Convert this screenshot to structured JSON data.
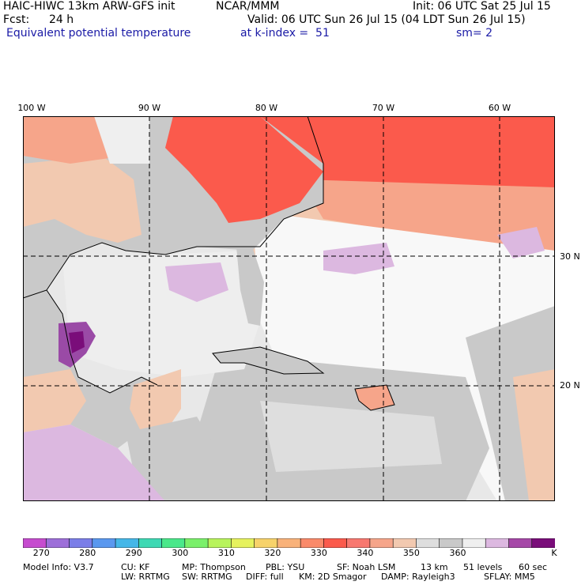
{
  "header": {
    "model_title": "HAIC-HIWC 13km ARW-GFS init",
    "org": "NCAR/MMM",
    "init_time": "Init: 06 UTC Sat 25 Jul 15",
    "forecast_label": "Fcst:",
    "forecast_hours": "24 h",
    "valid_time": "Valid: 06 UTC Sun 26 Jul 15 (04 LDT Sun 26 Jul 15)",
    "field_name": "Equivalent potential temperature",
    "level": "at k-index =  51",
    "smoothing": "sm= 2"
  },
  "map": {
    "longitude_labels": [
      "100 W",
      "90 W",
      "80 W",
      "70 W",
      "60 W"
    ],
    "latitude_labels": [
      "30 N",
      "20 N"
    ],
    "colors": {
      "ocean_light": "#e8e8e8",
      "gray_mid": "#c9c9c9",
      "tan": "#f2c9b0",
      "salmon": "#f6a58a",
      "red": "#fb5a4c",
      "lavender": "#dcb8e0",
      "purple": "#9a4aa6",
      "dark_purple": "#7a0d7a",
      "white": "#f8f8f8"
    }
  },
  "colorbar": {
    "colors": [
      "#c64ccf",
      "#9d6fd9",
      "#7b7ee8",
      "#5a98ef",
      "#45b7e8",
      "#3ed9b4",
      "#4ae88a",
      "#7af06a",
      "#b8f45c",
      "#e6f25e",
      "#f7d26a",
      "#f9b27a",
      "#fa8a6a",
      "#fb5a4c",
      "#f87870",
      "#f6a58a",
      "#f2c9b0",
      "#dedede",
      "#c9c9c9",
      "#efefef",
      "#dcb8e0",
      "#a648a8",
      "#7a0d7a"
    ],
    "tick_labels": [
      "270",
      "280",
      "290",
      "300",
      "310",
      "320",
      "330",
      "340",
      "350",
      "360"
    ],
    "unit": "K"
  },
  "footer": {
    "line1": [
      "Model Info: V3.7",
      "CU: KF",
      "MP: Thompson",
      "PBL: YSU",
      "SF: Noah LSM",
      "13 km",
      "51 levels",
      "60 sec"
    ],
    "line2": [
      "LW: RRTMG",
      "SW: RRTMG",
      "DIFF: full",
      "KM: 2D Smagor",
      "DAMP: Rayleigh3",
      "SFLAY: MM5"
    ]
  }
}
